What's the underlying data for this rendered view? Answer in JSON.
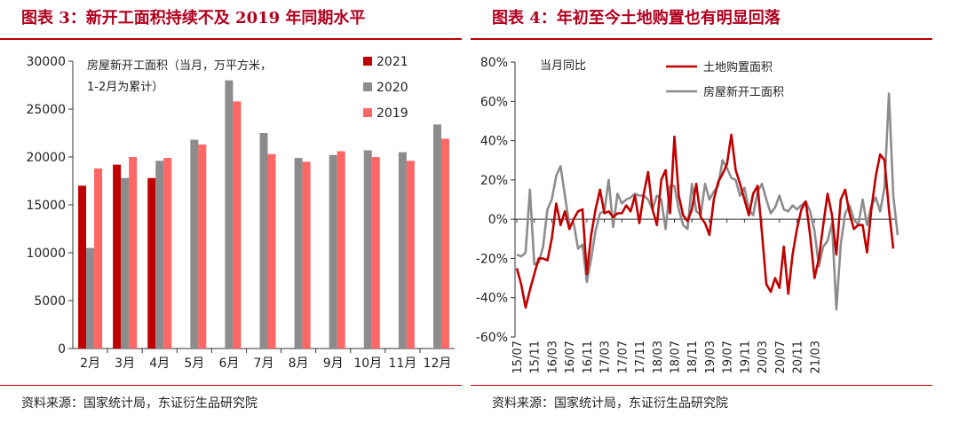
{
  "left": {
    "title": "图表 3：新开工面积持续不及 2019 年同期水平",
    "source": "资料来源：国家统计局，东证衍生品研究院",
    "colors": {
      "s2021": "#c00000",
      "s2020": "#8c8c8c",
      "s2019": "#ff6666",
      "accent": "#c00000"
    }
  },
  "right": {
    "title": "图表 4：年初至今土地购置也有明显回落",
    "source": "资料来源：国家统计局，东证衍生品研究院",
    "colors": {
      "land": "#c00000",
      "housing": "#8c8c8c",
      "accent": "#c00000"
    }
  },
  "chart_data": [
    {
      "type": "bar",
      "annotation": [
        "房屋新开工面积（当月，万平方米，",
        "1-2月为累计）"
      ],
      "categories": [
        "2月",
        "3月",
        "4月",
        "5月",
        "6月",
        "7月",
        "8月",
        "9月",
        "10月",
        "11月",
        "12月"
      ],
      "series": [
        {
          "name": "2021",
          "values": [
            17000,
            19200,
            17800,
            null,
            null,
            null,
            null,
            null,
            null,
            null,
            null
          ]
        },
        {
          "name": "2020",
          "values": [
            10500,
            17800,
            19600,
            21800,
            28000,
            22500,
            19900,
            20200,
            20700,
            20500,
            23400
          ]
        },
        {
          "name": "2019",
          "values": [
            18800,
            20000,
            19900,
            21300,
            25800,
            20300,
            19500,
            20600,
            20000,
            19600,
            21900
          ]
        }
      ],
      "ylim": [
        0,
        30000
      ],
      "yticks": [
        "0",
        "5000",
        "10000",
        "15000",
        "20000",
        "25000",
        "30000"
      ],
      "legend_position": "top-right",
      "grid": false
    },
    {
      "type": "line",
      "annotation": "当月同比",
      "ylim": [
        -60,
        80
      ],
      "yticks": [
        "-60%",
        "-40%",
        "-20%",
        "0%",
        "20%",
        "40%",
        "60%",
        "80%"
      ],
      "xticks": [
        "15/07",
        "15/11",
        "16/03",
        "16/07",
        "16/11",
        "17/03",
        "17/07",
        "17/11",
        "18/03",
        "18/07",
        "18/11",
        "19/03",
        "19/07",
        "19/11",
        "20/03",
        "20/07",
        "20/11",
        "21/03"
      ],
      "series": [
        {
          "name": "土地购置面积",
          "values": [
            -25,
            -33,
            -45,
            -36,
            -28,
            -20,
            -20,
            -21,
            -10,
            8,
            -3,
            4,
            -5,
            0,
            4,
            5,
            -28,
            -8,
            5,
            15,
            3,
            4,
            1,
            3,
            3,
            7,
            4,
            12,
            -2,
            13,
            24,
            5,
            -3,
            20,
            25,
            3,
            42,
            12,
            2,
            -1,
            5,
            18,
            1,
            -2,
            -8,
            10,
            19,
            23,
            28,
            43,
            25,
            18,
            10,
            2,
            13,
            17,
            -7,
            -33,
            -37,
            -30,
            -35,
            -14,
            -38,
            -18,
            -5,
            5,
            9,
            -8,
            -30,
            -20,
            -3,
            13,
            2,
            -18,
            10,
            15,
            3,
            -5,
            -3,
            -3,
            -17,
            5,
            22,
            33,
            30,
            5,
            -15
          ]
        },
        {
          "name": "房屋新开工面积",
          "values": [
            -18,
            -19,
            -17,
            15,
            -23,
            -22,
            -14,
            5,
            10,
            22,
            27,
            12,
            -3,
            -2,
            -15,
            -13,
            -32,
            -20,
            -6,
            3,
            4,
            20,
            -4,
            13,
            8,
            10,
            11,
            13,
            12,
            12,
            10,
            5,
            12,
            10,
            -5,
            17,
            17,
            5,
            -3,
            -5,
            18,
            4,
            2,
            18,
            10,
            14,
            17,
            30,
            26,
            21,
            20,
            12,
            16,
            5,
            2,
            14,
            18,
            10,
            3,
            6,
            12,
            5,
            4,
            7,
            5,
            7,
            9,
            4,
            -6,
            -24,
            -14,
            -11,
            -2,
            -46,
            -13,
            3,
            7,
            0,
            -3,
            10,
            -3,
            7,
            11,
            4,
            16,
            64,
            12,
            -8
          ]
        }
      ],
      "legend_position": "top-left",
      "grid": false
    }
  ]
}
